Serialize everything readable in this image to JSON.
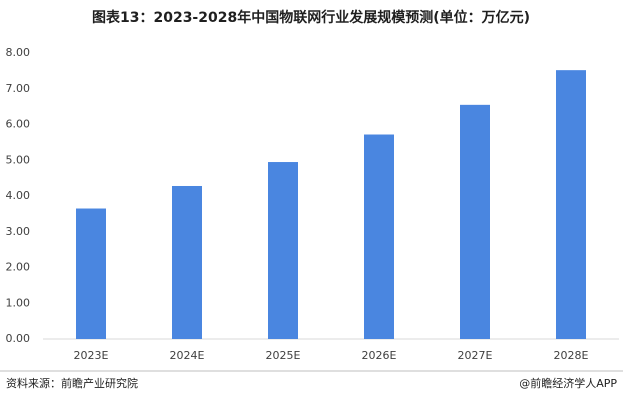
{
  "chart_data": {
    "type": "bar",
    "title": "图表13：2023-2028年中国物联网行业发展规模预测(单位：万亿元)",
    "categories": [
      "2023E",
      "2024E",
      "2025E",
      "2026E",
      "2027E",
      "2028E"
    ],
    "values": [
      3.65,
      4.28,
      4.95,
      5.72,
      6.55,
      7.52
    ],
    "color": "#4a86e0",
    "ylim": [
      0,
      8
    ],
    "yticks": [
      {
        "value": 0,
        "label": "0.00"
      },
      {
        "value": 1,
        "label": "1.00"
      },
      {
        "value": 2,
        "label": "2.00"
      },
      {
        "value": 3,
        "label": "3.00"
      },
      {
        "value": 4,
        "label": "4.00"
      },
      {
        "value": 5,
        "label": "5.00"
      },
      {
        "value": 6,
        "label": "6.00"
      },
      {
        "value": 7,
        "label": "7.00"
      },
      {
        "value": 8,
        "label": "8.00"
      }
    ],
    "grid": false,
    "source": "资料来源：前瞻产业研究院",
    "credit": "@前瞻经济学人APP"
  }
}
